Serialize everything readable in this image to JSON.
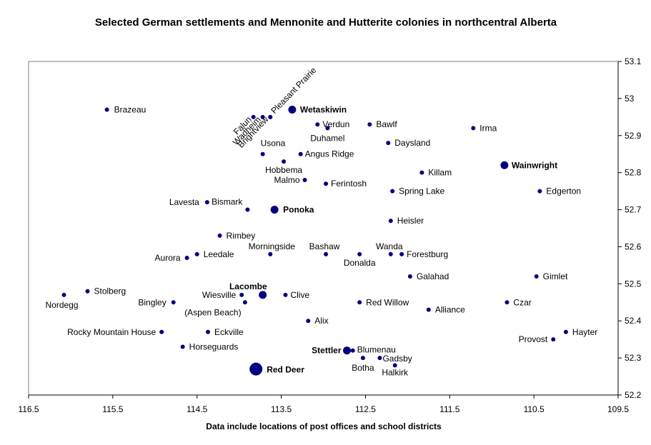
{
  "chart_data": {
    "type": "scatter",
    "title": "Selected German settlements and Mennonite and Hutterite colonies in northcentral Alberta",
    "xlabel": "Data include locations of post offices and school districts",
    "ylabel": "",
    "x_reversed": true,
    "xlim": [
      109.5,
      116.5
    ],
    "ylim": [
      52.2,
      53.1
    ],
    "x_ticks": [
      "116.5",
      "115.5",
      "114.5",
      "113.5",
      "112.5",
      "111.5",
      "110.5",
      "109.5"
    ],
    "y_ticks": [
      "53.1",
      "53",
      "52.9",
      "52.8",
      "52.7",
      "52.6",
      "52.5",
      "52.4",
      "52.3",
      "52.2"
    ],
    "grid": false,
    "marker_color": "#000080",
    "points": [
      {
        "name": "Brazeau",
        "x": 115.57,
        "y": 52.97,
        "size": "small"
      },
      {
        "name": "Falun",
        "x": 113.83,
        "y": 52.95,
        "size": "small"
      },
      {
        "name": "Wadheim",
        "x": 113.72,
        "y": 52.95,
        "size": "small"
      },
      {
        "name": "Brightview",
        "x": 113.63,
        "y": 52.95,
        "size": "small"
      },
      {
        "name": "Pleasant Prairie",
        "x": 113.63,
        "y": 52.95,
        "size": "small"
      },
      {
        "name": "Wetaskiwin",
        "x": 113.37,
        "y": 52.97,
        "size": "medium",
        "bold": true
      },
      {
        "name": "Verdun",
        "x": 113.07,
        "y": 52.93,
        "size": "small"
      },
      {
        "name": "Duhamel",
        "x": 112.95,
        "y": 52.92,
        "size": "small"
      },
      {
        "name": "Bawlf",
        "x": 112.45,
        "y": 52.93,
        "size": "small"
      },
      {
        "name": "Irma",
        "x": 111.22,
        "y": 52.92,
        "size": "small"
      },
      {
        "name": "Daysland",
        "x": 112.23,
        "y": 52.88,
        "size": "small"
      },
      {
        "name": "Usona",
        "x": 113.72,
        "y": 52.85,
        "size": "small"
      },
      {
        "name": "Angus Ridge",
        "x": 113.27,
        "y": 52.85,
        "size": "small"
      },
      {
        "name": "Hobbema",
        "x": 113.47,
        "y": 52.83,
        "size": "small"
      },
      {
        "name": "Wainwright",
        "x": 110.85,
        "y": 52.82,
        "size": "medium",
        "bold": true
      },
      {
        "name": "Killam",
        "x": 111.83,
        "y": 52.8,
        "size": "small"
      },
      {
        "name": "Malmo",
        "x": 113.22,
        "y": 52.78,
        "size": "small"
      },
      {
        "name": "Ferintosh",
        "x": 112.97,
        "y": 52.77,
        "size": "small"
      },
      {
        "name": "Spring Lake",
        "x": 112.18,
        "y": 52.75,
        "size": "small"
      },
      {
        "name": "Edgerton",
        "x": 110.43,
        "y": 52.75,
        "size": "small"
      },
      {
        "name": "Lavesta",
        "x": 114.38,
        "y": 52.72,
        "size": "small"
      },
      {
        "name": "Bismark",
        "x": 113.9,
        "y": 52.7,
        "size": "small"
      },
      {
        "name": "Ponoka",
        "x": 113.58,
        "y": 52.7,
        "size": "medium",
        "bold": true
      },
      {
        "name": "Heisler",
        "x": 112.2,
        "y": 52.67,
        "size": "small"
      },
      {
        "name": "Rimbey",
        "x": 114.23,
        "y": 52.63,
        "size": "small"
      },
      {
        "name": "Morningside",
        "x": 113.63,
        "y": 52.58,
        "size": "small"
      },
      {
        "name": "Bashaw",
        "x": 112.97,
        "y": 52.58,
        "size": "small"
      },
      {
        "name": "Wanda",
        "x": 112.2,
        "y": 52.58,
        "size": "small"
      },
      {
        "name": "Forestburg",
        "x": 112.07,
        "y": 52.58,
        "size": "small"
      },
      {
        "name": "Leedale",
        "x": 114.5,
        "y": 52.58,
        "size": "small"
      },
      {
        "name": "Donalda",
        "x": 112.57,
        "y": 52.58,
        "size": "small"
      },
      {
        "name": "Aurora",
        "x": 114.62,
        "y": 52.57,
        "size": "small"
      },
      {
        "name": "Galahad",
        "x": 111.97,
        "y": 52.52,
        "size": "small"
      },
      {
        "name": "Gimlet",
        "x": 110.47,
        "y": 52.52,
        "size": "small"
      },
      {
        "name": "Stolberg",
        "x": 115.8,
        "y": 52.48,
        "size": "small"
      },
      {
        "name": "Nordegg",
        "x": 116.08,
        "y": 52.47,
        "size": "small"
      },
      {
        "name": "Lacombe",
        "x": 113.72,
        "y": 52.47,
        "size": "medium",
        "bold": true
      },
      {
        "name": "Wiesville",
        "x": 113.97,
        "y": 52.47,
        "size": "small"
      },
      {
        "name": "Clive",
        "x": 113.45,
        "y": 52.47,
        "size": "small"
      },
      {
        "name": "(Aspen Beach)",
        "x": 113.93,
        "y": 52.45,
        "size": "small"
      },
      {
        "name": "Bingley",
        "x": 114.78,
        "y": 52.45,
        "size": "small"
      },
      {
        "name": "Red Willow",
        "x": 112.57,
        "y": 52.45,
        "size": "small"
      },
      {
        "name": "Czar",
        "x": 110.82,
        "y": 52.45,
        "size": "small"
      },
      {
        "name": "Alliance",
        "x": 111.75,
        "y": 52.43,
        "size": "small"
      },
      {
        "name": "Alix",
        "x": 113.18,
        "y": 52.4,
        "size": "small"
      },
      {
        "name": "Rocky Mountain House",
        "x": 114.92,
        "y": 52.37,
        "size": "small"
      },
      {
        "name": "Eckville",
        "x": 114.37,
        "y": 52.37,
        "size": "small"
      },
      {
        "name": "Hayter",
        "x": 110.12,
        "y": 52.37,
        "size": "small"
      },
      {
        "name": "Provost",
        "x": 110.27,
        "y": 52.35,
        "size": "small"
      },
      {
        "name": "Horseguards",
        "x": 114.67,
        "y": 52.33,
        "size": "small"
      },
      {
        "name": "Stettler",
        "x": 112.72,
        "y": 52.32,
        "size": "medium",
        "bold": true
      },
      {
        "name": "Blumenau",
        "x": 112.65,
        "y": 52.32,
        "size": "small"
      },
      {
        "name": "Botha",
        "x": 112.53,
        "y": 52.3,
        "size": "small"
      },
      {
        "name": "Gadsby",
        "x": 112.33,
        "y": 52.3,
        "size": "small"
      },
      {
        "name": "Halkirk",
        "x": 112.15,
        "y": 52.28,
        "size": "small"
      },
      {
        "name": "Red Deer",
        "x": 113.8,
        "y": 52.27,
        "size": "large",
        "bold": true
      }
    ]
  }
}
